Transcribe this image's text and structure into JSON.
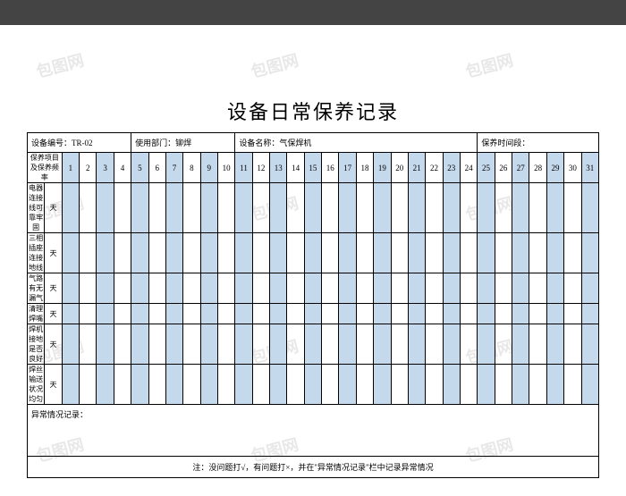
{
  "title": "设备日常保养记录",
  "headers": {
    "equipNo": "设备编号：TR-02",
    "dept": "使用部门：铆焊",
    "equipName": "设备名称：气保焊机",
    "period": "保养时间段："
  },
  "itemHeader": "保养项目及保养频率",
  "days": [
    "1",
    "2",
    "3",
    "4",
    "5",
    "6",
    "7",
    "8",
    "9",
    "10",
    "11",
    "12",
    "13",
    "14",
    "15",
    "16",
    "17",
    "18",
    "19",
    "20",
    "21",
    "22",
    "23",
    "24",
    "25",
    "26",
    "27",
    "28",
    "29",
    "30",
    "31"
  ],
  "items": [
    {
      "name": "电器连接线可靠牢固",
      "freq": "天"
    },
    {
      "name": "三相插座连接地线",
      "freq": "天"
    },
    {
      "name": "气路有无漏气",
      "freq": "天"
    },
    {
      "name": "清理焊嘴",
      "freq": "天"
    },
    {
      "name": "焊机接地是否良好",
      "freq": "天"
    },
    {
      "name": "焊丝输送状况均匀",
      "freq": "天"
    }
  ],
  "notesLabel": "异常情况记录：",
  "footerNote": "注：没问题打√，有问题打×，并在\"异常情况记录\"栏中记录异常情况",
  "watermarkText": "包图网",
  "colors": {
    "blueCellBg": "#c5d9ed",
    "border": "#000000",
    "grayBar": "#444444",
    "watermark": "#e8e8e8"
  }
}
